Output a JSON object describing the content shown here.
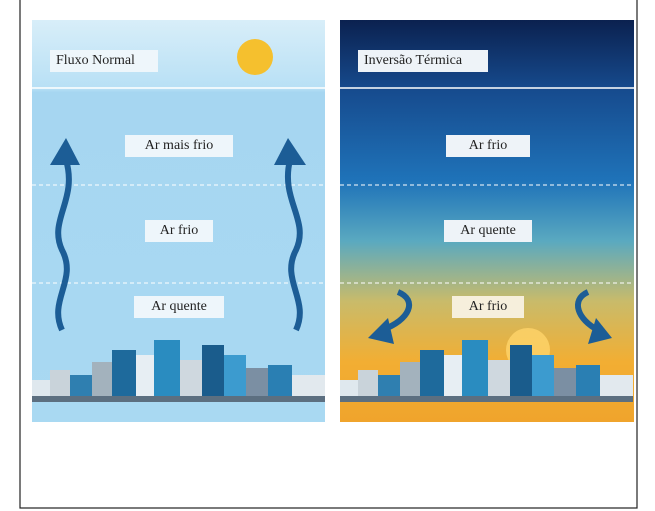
{
  "panels": [
    {
      "title": "Fluxo Normal",
      "layers": [
        "Ar mais frio",
        "Ar frio",
        "Ar quente"
      ]
    },
    {
      "title": "Inversão Térmica",
      "layers": [
        "Ar frio",
        "Ar quente",
        "Ar frio"
      ]
    }
  ]
}
